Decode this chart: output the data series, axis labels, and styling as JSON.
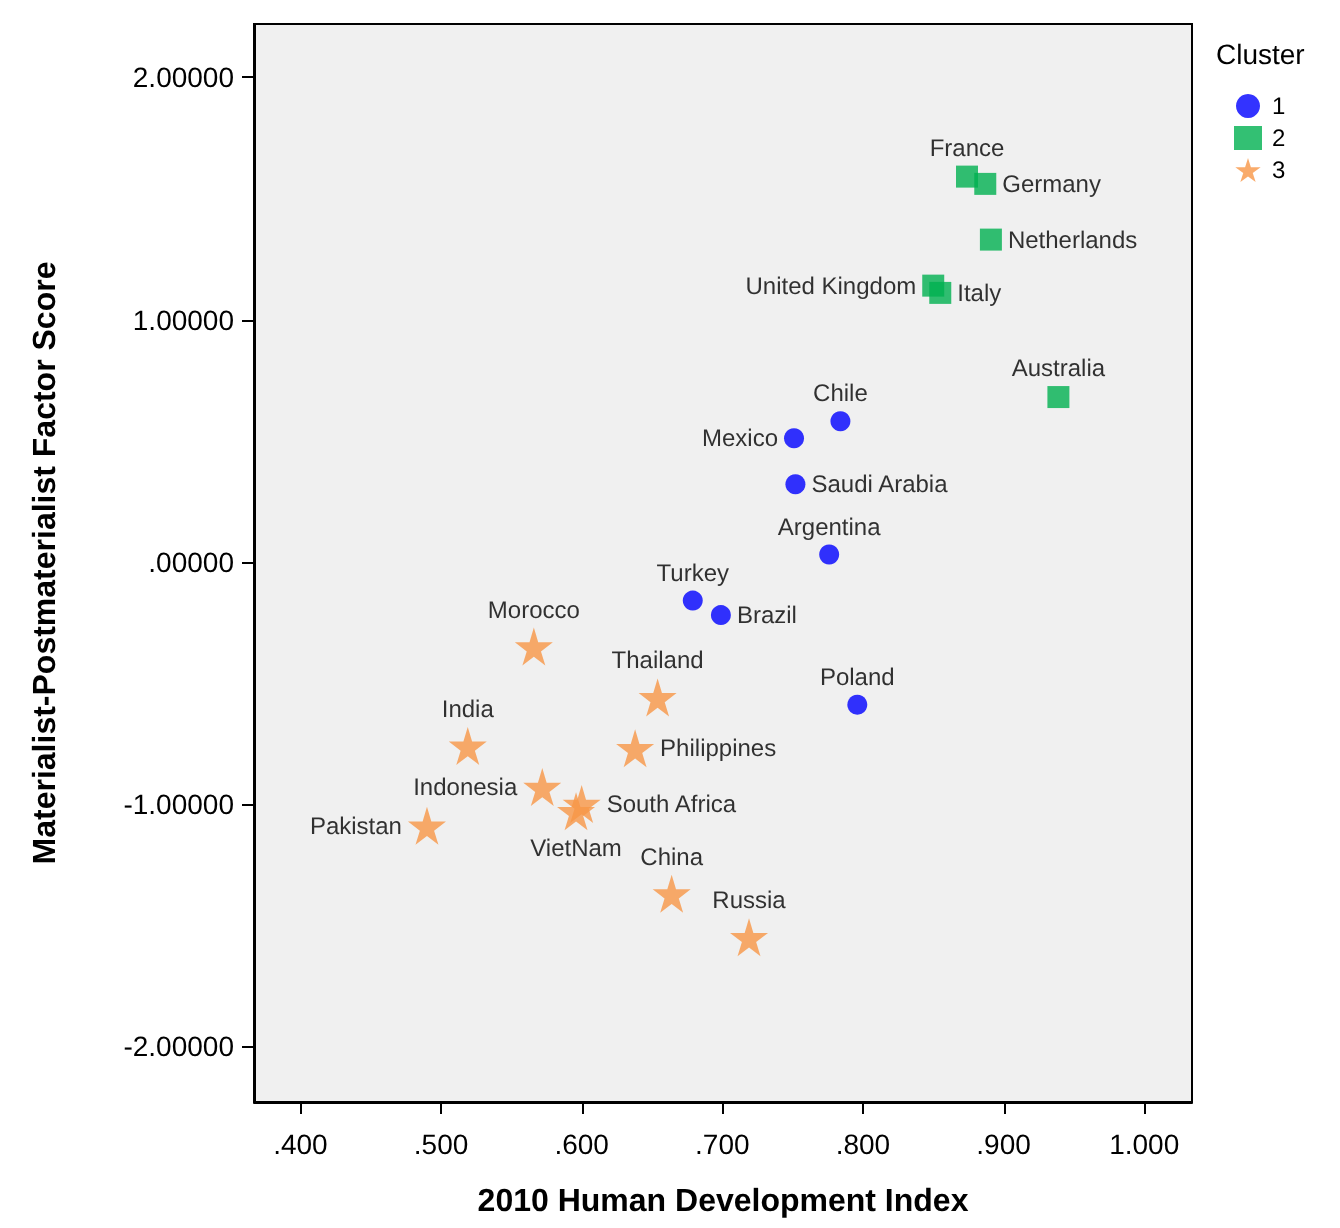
{
  "chart_data": {
    "type": "scatter",
    "xlabel": "2010 Human Development Index",
    "ylabel": "Materialist-Postmaterialist Factor Score",
    "legend_title": "Cluster",
    "legend": "top right",
    "grid": false,
    "xlim": [
      0.367,
      1.034
    ],
    "ylim": [
      -2.23,
      2.22
    ],
    "xticks": [
      {
        "value": 0.4,
        "label": ".400"
      },
      {
        "value": 0.5,
        "label": ".500"
      },
      {
        "value": 0.6,
        "label": ".600"
      },
      {
        "value": 0.7,
        "label": ".700"
      },
      {
        "value": 0.8,
        "label": ".800"
      },
      {
        "value": 0.9,
        "label": ".900"
      },
      {
        "value": 1.0,
        "label": "1.000"
      }
    ],
    "yticks": [
      {
        "value": -2,
        "label": "-2.00000"
      },
      {
        "value": -1,
        "label": "-1.00000"
      },
      {
        "value": 0,
        "label": ".00000"
      },
      {
        "value": 1,
        "label": "1.00000"
      },
      {
        "value": 2,
        "label": "2.00000"
      }
    ],
    "series": [
      {
        "name": "1",
        "color": "#0000ff",
        "marker": "circle",
        "x": [
          0.784,
          0.751,
          0.752,
          0.776,
          0.679,
          0.699,
          0.796
        ],
        "values": [
          0.58,
          0.51,
          0.32,
          0.03,
          -0.16,
          -0.22,
          -0.59
        ],
        "value_labels": [
          "Chile",
          "Mexico",
          "Saudi Arabia",
          "Argentina",
          "Turkey",
          "Brazil",
          "Poland"
        ]
      },
      {
        "name": "2",
        "color": "#00b050",
        "marker": "square",
        "x": [
          0.874,
          0.887,
          0.891,
          0.85,
          0.855,
          0.939
        ],
        "values": [
          1.59,
          1.56,
          1.33,
          1.14,
          1.11,
          0.68
        ],
        "value_labels": [
          "France",
          "Germany",
          "Netherlands",
          "United Kingdom",
          "Italy",
          "Australia"
        ]
      },
      {
        "name": "3",
        "color": "#f79646",
        "marker": "star",
        "x": [
          0.566,
          0.654,
          0.519,
          0.638,
          0.572,
          0.6,
          0.596,
          0.49,
          0.664,
          0.719
        ],
        "values": [
          -0.35,
          -0.56,
          -0.76,
          -0.77,
          -0.93,
          -1.0,
          -1.03,
          -1.09,
          -1.37,
          -1.55
        ],
        "value_labels": [
          "Morocco",
          "Thailand",
          "India",
          "Philippines",
          "Indonesia",
          "South Africa",
          "VietNam",
          "Pakistan",
          "China",
          "Russia"
        ]
      }
    ]
  }
}
